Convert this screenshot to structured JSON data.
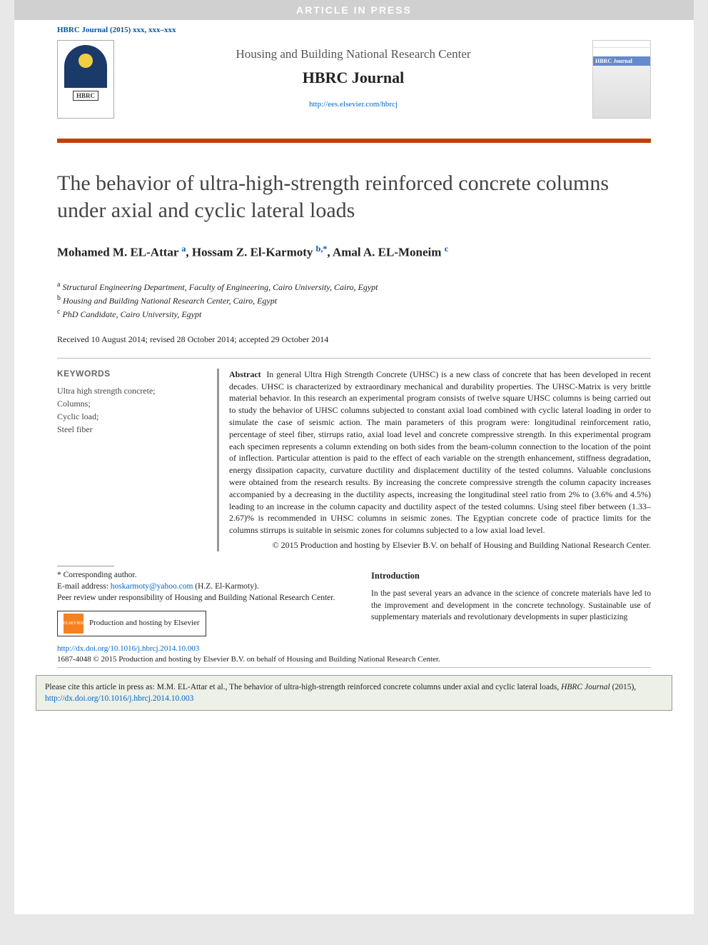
{
  "banner": {
    "text": "ARTICLE IN PRESS"
  },
  "citation_top": "HBRC Journal (2015) xxx, xxx–xxx",
  "header": {
    "institution": "Housing and Building National Research Center",
    "journal": "HBRC Journal",
    "link": "http://ees.elsevier.com/hbrcj",
    "logo_label": "HBRC",
    "cover_label": "HBRC Journal"
  },
  "title": "The behavior of ultra-high-strength reinforced concrete columns under axial and cyclic lateral loads",
  "authors": {
    "a1_name": "Mohamed M. EL-Attar",
    "a1_sup": "a",
    "a2_name": "Hossam Z. El-Karmoty",
    "a2_sup": "b,*",
    "a3_name": "Amal A. EL-Moneim",
    "a3_sup": "c"
  },
  "affiliations": {
    "a": "Structural Engineering Department, Faculty of Engineering, Cairo University, Cairo, Egypt",
    "b": "Housing and Building National Research Center, Cairo, Egypt",
    "c": "PhD Candidate, Cairo University, Egypt"
  },
  "dates": "Received 10 August 2014; revised 28 October 2014; accepted 29 October 2014",
  "keywords": {
    "heading": "KEYWORDS",
    "list": "Ultra high strength concrete;\nColumns;\nCyclic load;\nSteel fiber"
  },
  "abstract": {
    "label": "Abstract",
    "text": "In general Ultra High Strength Concrete (UHSC) is a new class of concrete that has been developed in recent decades. UHSC is characterized by extraordinary mechanical and durability properties. The UHSC-Matrix is very brittle material behavior. In this research an experimental program consists of twelve square UHSC columns is being carried out to study the behavior of UHSC columns subjected to constant axial load combined with cyclic lateral loading in order to simulate the case of seismic action. The main parameters of this program were: longitudinal reinforcement ratio, percentage of steel fiber, stirrups ratio, axial load level and concrete compressive strength. In this experimental program each specimen represents a column extending on both sides from the beam-column connection to the location of the point of inflection. Particular attention is paid to the effect of each variable on the strength enhancement, stiffness degradation, energy dissipation capacity, curvature ductility and displacement ductility of the tested columns. Valuable conclusions were obtained from the research results. By increasing the concrete compressive strength the column capacity increases accompanied by a decreasing in the ductility aspects, increasing the longitudinal steel ratio from 2% to (3.6% and 4.5%) leading to an increase in the column capacity and ductility aspect of the tested columns. Using steel fiber between (1.33–2.67)% is recommended in UHSC columns in seismic zones. The Egyptian concrete code of practice limits for the columns stirrups is suitable in seismic zones for columns subjected to a low axial load level.",
    "copyright": "© 2015 Production and hosting by Elsevier B.V. on behalf of Housing and Building National Research Center."
  },
  "corresponding": {
    "label": "* Corresponding author.",
    "email_label": "E-mail address:",
    "email": "hoskarmoty@yahoo.com",
    "email_name": "(H.Z. El-Karmoty).",
    "peer": "Peer review under responsibility of Housing and Building National Research Center.",
    "prod": "Production and hosting by Elsevier",
    "els": "ELSEVIER"
  },
  "intro": {
    "heading": "Introduction",
    "text": "In the past several years an advance in the science of concrete materials have led to the improvement and development in the concrete technology. Sustainable use of supplementary materials and revolutionary developments in super plasticizing"
  },
  "doi": {
    "link": "http://dx.doi.org/10.1016/j.hbrcj.2014.10.003",
    "issn": "1687-4048 © 2015 Production and hosting by Elsevier B.V. on behalf of Housing and Building National Research Center."
  },
  "citebox": {
    "prefix": "Please cite this article in press as: M.M. EL-Attar et al., The behavior of ultra-high-strength reinforced concrete columns under axial and cyclic lateral loads, ",
    "ital": "HBRC Journal",
    "suffix": " (2015), ",
    "link": "http://dx.doi.org/10.1016/j.hbrcj.2014.10.003"
  },
  "colors": {
    "rule": "#c04000",
    "link": "#0066cc",
    "citation": "#0055aa"
  }
}
